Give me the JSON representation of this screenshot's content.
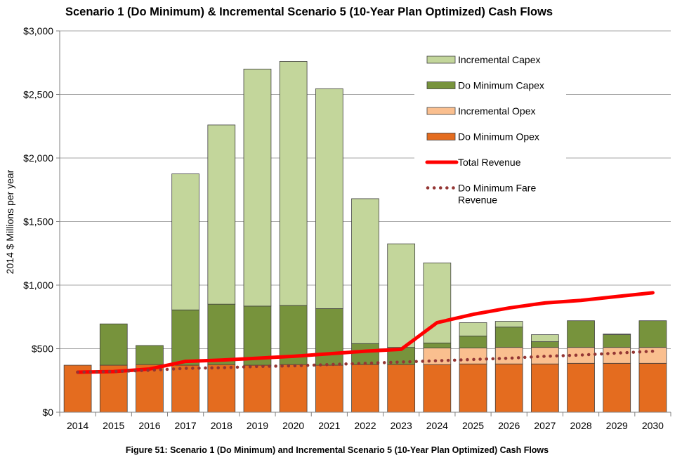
{
  "chart_data": {
    "type": "bar",
    "title": "Scenario 1 (Do Minimum) & Incremental Scenario 5 (10-Year Plan Optimized) Cash Flows",
    "caption": "Figure 51: Scenario 1 (Do Minimum) and Incremental Scenario 5 (10-Year Plan Optimized) Cash Flows",
    "xlabel": "",
    "ylabel": "2014 $ Millions per year",
    "ylim": [
      0,
      3000
    ],
    "yticks": [
      0,
      500,
      1000,
      1500,
      2000,
      2500,
      3000
    ],
    "ytick_labels": [
      "$0",
      "$500",
      "$1,000",
      "$1,500",
      "$2,000",
      "$2,500",
      "$3,000"
    ],
    "grid": true,
    "legend_position": "top-right",
    "categories": [
      "2014",
      "2015",
      "2016",
      "2017",
      "2018",
      "2019",
      "2020",
      "2021",
      "2022",
      "2023",
      "2024",
      "2025",
      "2026",
      "2027",
      "2028",
      "2029",
      "2030"
    ],
    "series": [
      {
        "name": "Do Minimum Opex",
        "kind": "stacked-bar",
        "color": "#E46C1F",
        "values": [
          370,
          370,
          375,
          370,
          375,
          370,
          375,
          370,
          375,
          375,
          375,
          380,
          380,
          380,
          385,
          385,
          385
        ]
      },
      {
        "name": "Incremental Opex",
        "kind": "stacked-bar",
        "color": "#FABF8F",
        "values": [
          0,
          0,
          0,
          0,
          0,
          0,
          0,
          0,
          0,
          0,
          130,
          125,
          130,
          130,
          125,
          125,
          125
        ]
      },
      {
        "name": "Do Minimum Capex",
        "kind": "stacked-bar",
        "color": "#77933C",
        "values": [
          0,
          325,
          150,
          435,
          475,
          465,
          465,
          445,
          165,
          135,
          40,
          95,
          160,
          45,
          210,
          100,
          210
        ]
      },
      {
        "name": "Incremental Capex",
        "kind": "stacked-bar",
        "color": "#C3D69B",
        "values": [
          0,
          0,
          0,
          1070,
          1410,
          1865,
          1920,
          1730,
          1140,
          815,
          630,
          105,
          45,
          55,
          0,
          5,
          0
        ]
      },
      {
        "name": "Total Revenue",
        "kind": "line",
        "color": "#FF0000",
        "values": [
          315,
          320,
          340,
          400,
          410,
          425,
          440,
          460,
          480,
          495,
          705,
          770,
          820,
          860,
          880,
          910,
          940
        ]
      },
      {
        "name": "Do Minimum Fare Revenue",
        "kind": "dotted-line",
        "color": "#943634",
        "values": [
          315,
          320,
          330,
          345,
          350,
          360,
          365,
          375,
          385,
          395,
          405,
          415,
          425,
          440,
          450,
          465,
          480
        ]
      }
    ],
    "legend": [
      "Incremental Capex",
      "Do Minimum Capex",
      "Incremental Opex",
      "Do Minimum Opex",
      "Total Revenue",
      "Do Minimum Fare Revenue"
    ]
  }
}
